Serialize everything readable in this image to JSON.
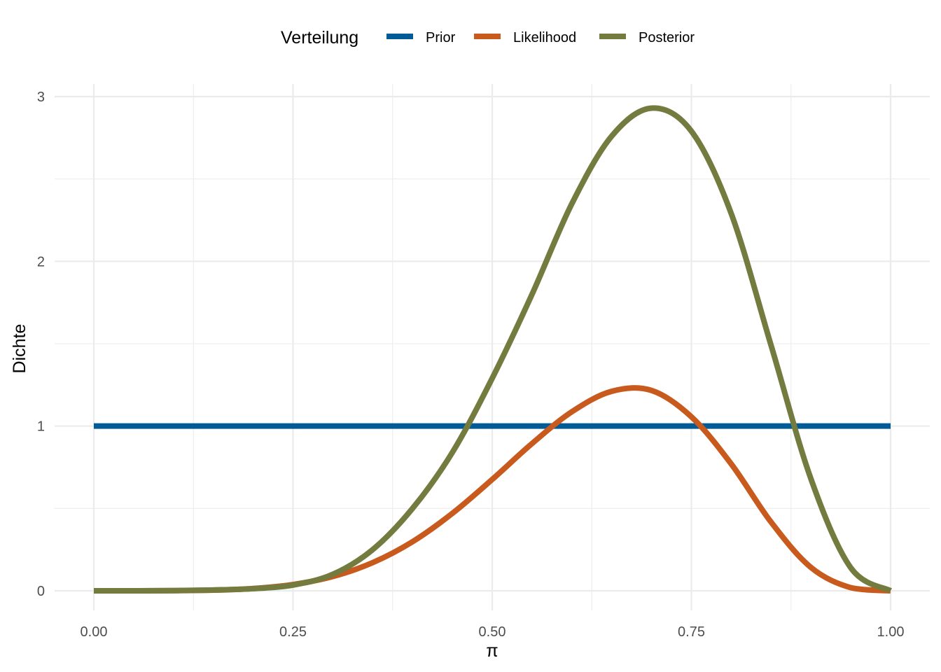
{
  "chart_data": {
    "type": "line",
    "xlabel": "π",
    "ylabel": "Dichte",
    "xlim": [
      0,
      1
    ],
    "ylim": [
      0,
      3
    ],
    "x_ticks": [
      0,
      0.25,
      0.5,
      0.75,
      1
    ],
    "x_tick_labels": [
      "0.00",
      "0.25",
      "0.50",
      "0.75",
      "1.00"
    ],
    "y_ticks": [
      0,
      1,
      2,
      3
    ],
    "y_tick_labels": [
      "0",
      "1",
      "2",
      "3"
    ],
    "grid": true,
    "legend": {
      "title": "Verteilung",
      "position": "top",
      "entries": [
        "Prior",
        "Likelihood",
        "Posterior"
      ]
    },
    "series": [
      {
        "name": "Prior",
        "color": "#005b96",
        "x": [
          0,
          1
        ],
        "y": [
          1,
          1
        ]
      },
      {
        "name": "Likelihood",
        "color": "#c85a1e",
        "x": [
          0,
          0.05,
          0.1,
          0.15,
          0.2,
          0.25,
          0.3,
          0.35,
          0.4,
          0.45,
          0.5,
          0.55,
          0.6,
          0.65,
          0.7,
          0.75,
          0.8,
          0.85,
          0.9,
          0.95,
          1
        ],
        "y": [
          0,
          0.0,
          0.001,
          0.004,
          0.014,
          0.038,
          0.087,
          0.171,
          0.298,
          0.47,
          0.676,
          0.894,
          1.087,
          1.211,
          1.216,
          1.056,
          0.77,
          0.417,
          0.142,
          0.019,
          0
        ]
      },
      {
        "name": "Posterior",
        "color": "#737b3e",
        "x": [
          0,
          0.05,
          0.1,
          0.15,
          0.2,
          0.25,
          0.3,
          0.35,
          0.4,
          0.45,
          0.5,
          0.55,
          0.6,
          0.65,
          0.7,
          0.75,
          0.8,
          0.85,
          0.9,
          0.95,
          1
        ],
        "y": [
          0,
          0.0,
          0.001,
          0.005,
          0.013,
          0.035,
          0.1,
          0.25,
          0.5,
          0.84,
          1.29,
          1.8,
          2.35,
          2.76,
          2.93,
          2.79,
          2.29,
          1.49,
          0.68,
          0.14,
          0
        ]
      }
    ]
  }
}
